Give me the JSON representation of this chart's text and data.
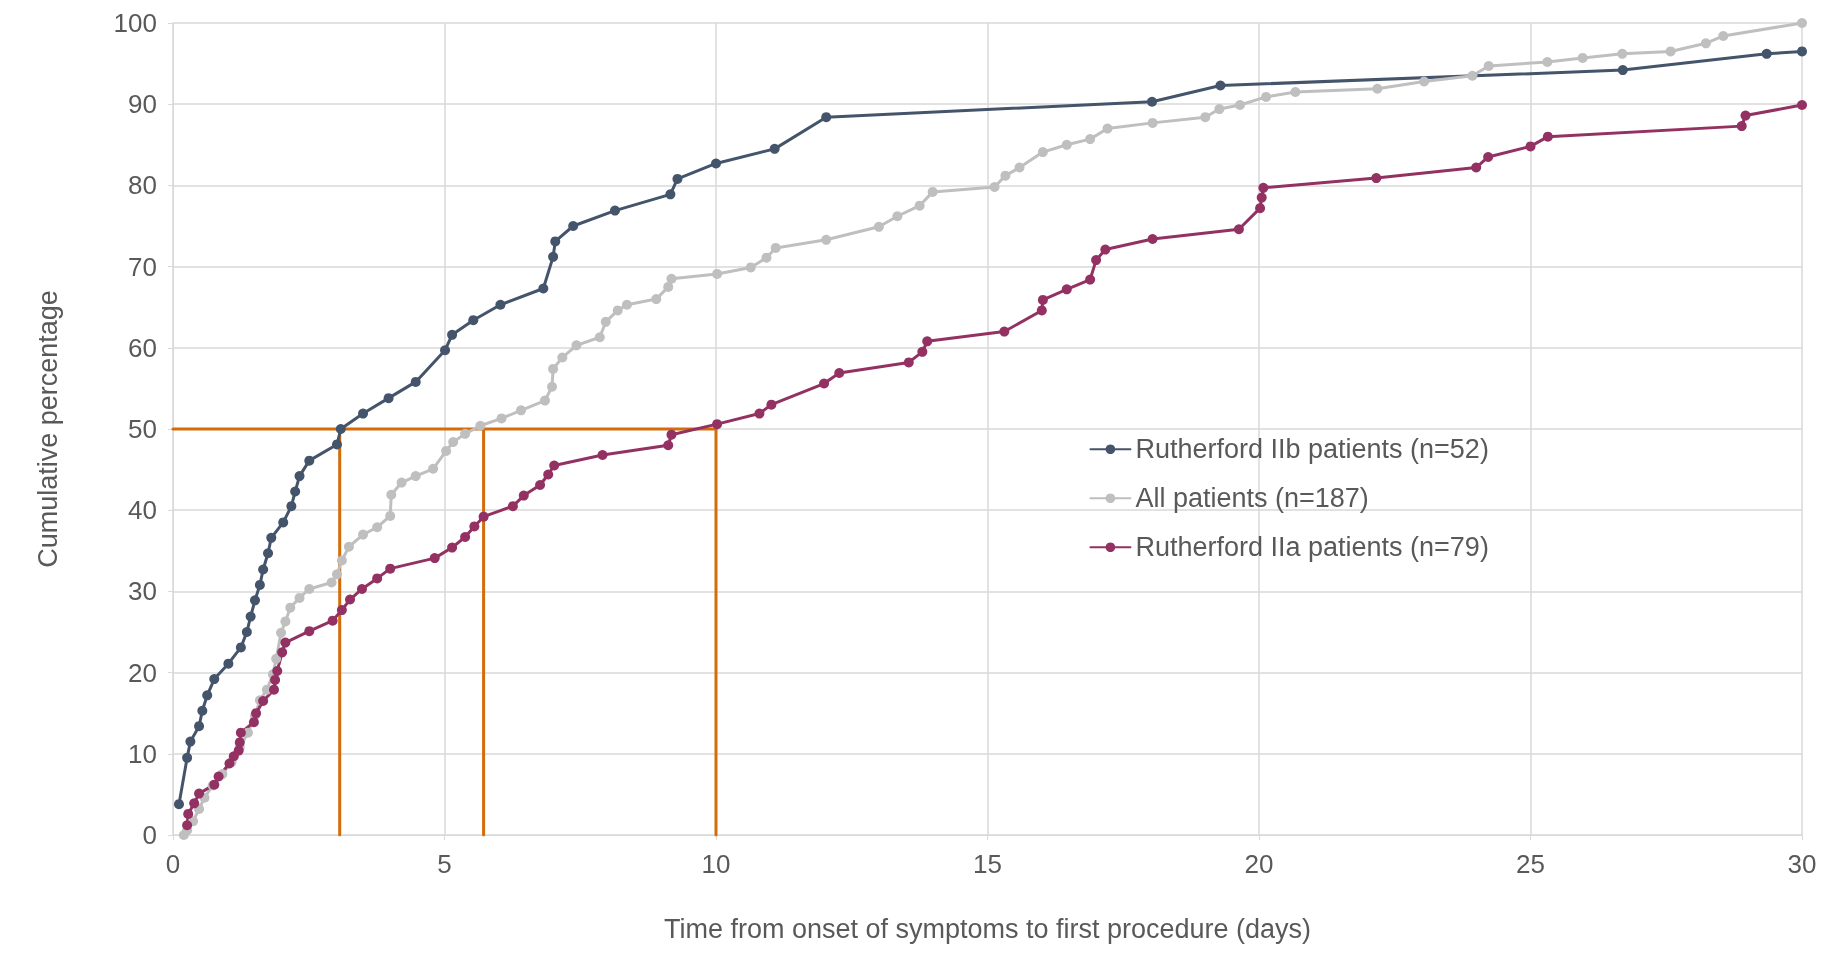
{
  "chart_data": {
    "type": "line",
    "xlabel": "Time from onset of symptoms to first procedure (days)",
    "ylabel": "Cumulative percentage",
    "xlim": [
      0,
      30
    ],
    "xticks": [
      0,
      5,
      10,
      15,
      20,
      25,
      30
    ],
    "ylim": [
      0,
      100
    ],
    "yticks": [
      0,
      10,
      20,
      30,
      40,
      50,
      60,
      70,
      80,
      90,
      100
    ],
    "grid": true,
    "legend": "right",
    "marker": "circle",
    "line_style": "solid",
    "series": [
      {
        "name": "Rutherford IIb patients (n=52)",
        "color": "#44546a",
        "x": [
          0.11,
          0.26,
          0.32,
          0.48,
          0.54,
          0.63,
          0.76,
          1.02,
          1.25,
          1.36,
          1.43,
          1.51,
          1.6,
          1.66,
          1.75,
          1.81,
          2.03,
          2.18,
          2.25,
          2.33,
          2.51,
          3.02,
          3.09,
          3.5,
          3.97,
          4.47,
          5.01,
          5.14,
          5.53,
          6.03,
          6.82,
          7.0,
          7.04,
          7.37,
          8.14,
          9.16,
          9.29,
          10.0,
          11.08,
          12.03,
          18.03,
          19.29,
          26.7,
          29.35,
          30.0
        ],
        "values": [
          3.8,
          9.5,
          11.5,
          13.4,
          15.3,
          17.2,
          19.2,
          21.1,
          23.1,
          25.0,
          26.9,
          28.9,
          30.8,
          32.7,
          34.7,
          36.6,
          38.5,
          40.5,
          42.3,
          44.2,
          46.1,
          48.1,
          50.0,
          51.9,
          53.8,
          55.8,
          59.7,
          61.6,
          63.4,
          65.3,
          67.3,
          71.2,
          73.1,
          75.0,
          76.9,
          78.9,
          80.8,
          82.7,
          84.5,
          88.4,
          90.3,
          92.3,
          94.2,
          96.2,
          96.5
        ]
      },
      {
        "name": "All patients (n=187)",
        "color": "#bfbfbf",
        "x": [
          0.2,
          0.26,
          0.37,
          0.48,
          0.58,
          0.73,
          0.91,
          1.08,
          1.23,
          1.38,
          1.51,
          1.6,
          1.73,
          1.84,
          1.9,
          1.99,
          2.07,
          2.16,
          2.33,
          2.51,
          2.92,
          3.02,
          3.11,
          3.24,
          3.5,
          3.76,
          4.0,
          4.02,
          4.21,
          4.47,
          4.79,
          5.03,
          5.16,
          5.38,
          5.66,
          6.05,
          6.41,
          6.85,
          6.98,
          7.0,
          7.17,
          7.43,
          7.86,
          7.97,
          8.19,
          8.36,
          8.9,
          9.12,
          9.18,
          10.02,
          10.64,
          10.93,
          11.1,
          12.03,
          13.0,
          13.34,
          13.75,
          13.99,
          15.13,
          15.33,
          15.59,
          16.02,
          16.46,
          16.89,
          17.21,
          18.04,
          19.01,
          19.27,
          19.65,
          20.13,
          20.67,
          22.18,
          23.04,
          23.93,
          24.23,
          25.31,
          25.96,
          26.69,
          27.58,
          28.23,
          28.55,
          30.0
        ],
        "values": [
          0,
          0.6,
          1.7,
          3.2,
          4.6,
          6.1,
          7.5,
          9.0,
          10.8,
          12.6,
          14.7,
          16.6,
          17.9,
          19.8,
          21.7,
          24.9,
          26.3,
          28.0,
          29.2,
          30.3,
          31.1,
          32.1,
          33.8,
          35.5,
          37.0,
          37.9,
          39.3,
          41.9,
          43.4,
          44.2,
          45.1,
          47.3,
          48.4,
          49.4,
          50.4,
          51.3,
          52.3,
          53.5,
          55.2,
          57.4,
          58.8,
          60.3,
          61.3,
          63.2,
          64.6,
          65.3,
          66.0,
          67.5,
          68.5,
          69.1,
          69.9,
          71.1,
          72.3,
          73.3,
          74.9,
          76.2,
          77.5,
          79.2,
          79.8,
          81.2,
          82.2,
          84.1,
          85.0,
          85.7,
          87.0,
          87.7,
          88.4,
          89.4,
          89.9,
          90.9,
          91.5,
          91.9,
          92.8,
          93.5,
          94.7,
          95.2,
          95.7,
          96.2,
          96.5,
          97.5,
          98.4,
          100
        ]
      },
      {
        "name": "Rutherford IIa patients (n=79)",
        "color": "#933162",
        "x": [
          0.26,
          0.28,
          0.39,
          0.48,
          0.76,
          0.84,
          1.04,
          1.12,
          1.21,
          1.23,
          1.25,
          1.49,
          1.53,
          1.66,
          1.86,
          1.88,
          1.92,
          2.01,
          2.07,
          2.51,
          2.94,
          3.11,
          3.26,
          3.48,
          3.76,
          4.0,
          4.82,
          5.14,
          5.38,
          5.55,
          5.72,
          6.26,
          6.46,
          6.76,
          6.91,
          7.02,
          7.91,
          9.12,
          9.18,
          10.02,
          10.8,
          11.02,
          11.99,
          12.27,
          13.55,
          13.8,
          13.89,
          15.31,
          16.0,
          16.02,
          16.46,
          16.89,
          17.0,
          17.17,
          18.04,
          19.63,
          20.02,
          20.05,
          20.08,
          22.16,
          24.0,
          24.22,
          25.0,
          25.32,
          28.89,
          28.96,
          30.0
        ],
        "values": [
          1.2,
          2.6,
          3.9,
          5.1,
          6.2,
          7.2,
          8.8,
          9.7,
          10.4,
          11.4,
          12.6,
          13.9,
          15.0,
          16.5,
          17.9,
          19.1,
          20.2,
          22.5,
          23.7,
          25.1,
          26.4,
          27.7,
          29.0,
          30.3,
          31.6,
          32.8,
          34.1,
          35.4,
          36.7,
          38.0,
          39.2,
          40.5,
          41.8,
          43.1,
          44.4,
          45.5,
          46.8,
          48.0,
          49.3,
          50.6,
          51.9,
          53.0,
          55.6,
          56.9,
          58.2,
          59.5,
          60.8,
          62.0,
          64.6,
          65.9,
          67.2,
          68.4,
          70.8,
          72.1,
          73.4,
          74.6,
          77.2,
          78.5,
          79.7,
          80.9,
          82.2,
          83.5,
          84.8,
          86.0,
          87.3,
          88.6,
          89.9
        ]
      },
      {
        "color": "#d46c0a",
        "marker": "none",
        "x": [
          0,
          10
        ],
        "values": [
          50,
          50
        ]
      },
      {
        "color": "#d46c0a",
        "marker": "none",
        "x": [
          3.07,
          3.07
        ],
        "values": [
          0,
          50
        ]
      },
      {
        "color": "#d46c0a",
        "marker": "none",
        "x": [
          5.72,
          5.72
        ],
        "values": [
          0,
          50
        ]
      },
      {
        "color": "#d46c0a",
        "marker": "none",
        "x": [
          10.0,
          10.0
        ],
        "values": [
          0,
          50
        ]
      }
    ]
  }
}
